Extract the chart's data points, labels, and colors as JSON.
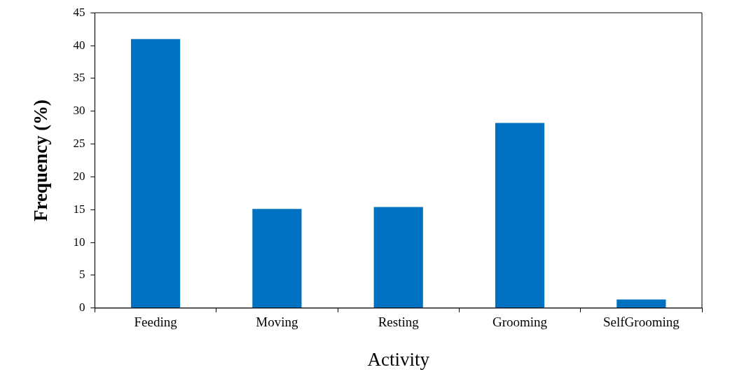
{
  "chart_data": {
    "type": "bar",
    "xlabel": "Activity",
    "ylabel": "Frequency (%)",
    "categories": [
      "Feeding",
      "Moving",
      "Resting",
      "Grooming",
      "SelfGrooming"
    ],
    "values": [
      41,
      15.1,
      15.4,
      28.2,
      1.3
    ],
    "color": "#0070c0",
    "ylim": [
      0,
      45
    ],
    "yticks": [
      0,
      5,
      10,
      15,
      20,
      25,
      30,
      35,
      40,
      45
    ],
    "grid": false,
    "legend": false
  }
}
